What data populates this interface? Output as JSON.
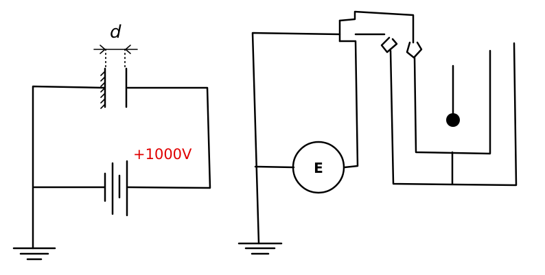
{
  "left_circuit": {
    "gap_label": "d",
    "voltage_label": "+1000V",
    "voltage_color": "#e00000"
  },
  "right_circuit": {
    "meter_label": "E"
  },
  "icons": [
    "ground-symbol",
    "battery-symbol",
    "capacitor-plates",
    "electrometer",
    "leaf-electroscope"
  ]
}
